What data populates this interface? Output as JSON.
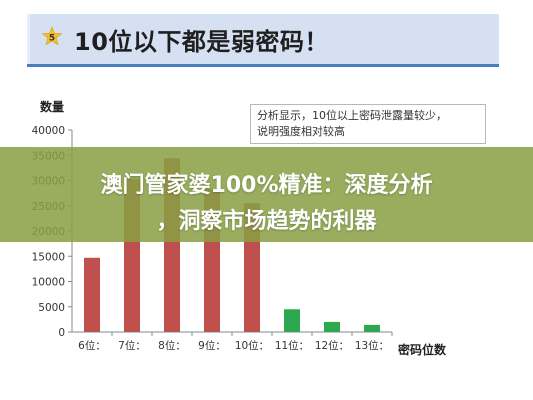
{
  "header": {
    "badge_number": "5",
    "title": "10位以下都是弱密码！"
  },
  "colors": {
    "header_bg": "#d5e1f2",
    "header_line": "#4a7ebb",
    "badge": "#f2c028",
    "bar_red": "#c0504d",
    "bar_green": "#2ea84f",
    "banner": "#89a043"
  },
  "banner": {
    "line1": "澳门管家婆100%精准：深度分析",
    "line2": "，洞察市场趋势的利器"
  },
  "note": {
    "line1": "分析显示，10位以上密码泄露量较少，",
    "line2": "说明强度相对较高"
  },
  "chart_data": {
    "type": "bar",
    "ylabel": "数量",
    "xlabel": "密码位数",
    "ylim": [
      0,
      40000
    ],
    "yticks": [
      0,
      5000,
      10000,
      15000,
      20000,
      25000,
      30000,
      35000,
      40000
    ],
    "categories": [
      "6位：",
      "7位：",
      "8位：",
      "9位：",
      "10位：",
      "11位：",
      "12位：",
      "13位："
    ],
    "values": [
      14700,
      30300,
      34400,
      28300,
      25500,
      4500,
      2000,
      1400
    ],
    "colors": [
      "#c0504d",
      "#c0504d",
      "#c0504d",
      "#c0504d",
      "#c0504d",
      "#2ea84f",
      "#2ea84f",
      "#2ea84f"
    ]
  }
}
